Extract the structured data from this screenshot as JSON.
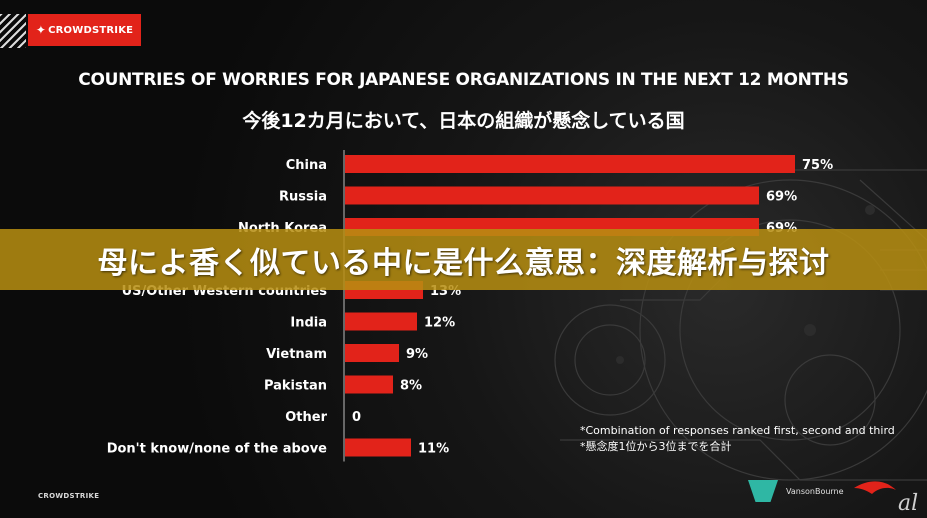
{
  "header": {
    "brand": "CROWDSTRIKE"
  },
  "banner": {
    "text": "母によ香く似ている中に是什么意思：深度解析与探讨"
  },
  "footnote": {
    "en": "*Combination of responses ranked first, second and third",
    "jp": "*懸念度1位から3位までを合計"
  },
  "footer": {
    "brand": "CROWDSTRIKE",
    "partner": "VansonBourne",
    "corner_mark": "al"
  },
  "colors": {
    "bar": "#e2231a",
    "text": "#ffffff",
    "banner": "#b78e12",
    "partner": "#2fb7a4"
  },
  "chart_data": {
    "type": "bar",
    "orientation": "horizontal",
    "title": "COUNTRIES OF WORRIES FOR JAPANESE ORGANIZATIONS IN THE NEXT 12 MONTHS",
    "subtitle": "今後12カ月において、日本の組織が懸念している国",
    "categories": [
      "China",
      "Russia",
      "North Korea",
      "",
      "US/Other Western countries",
      "India",
      "Vietnam",
      "Pakistan",
      "Other",
      "Don't know/none of the above"
    ],
    "values": [
      75,
      69,
      69,
      null,
      13,
      12,
      9,
      8,
      0,
      11
    ],
    "value_labels": [
      "75%",
      "69%",
      "69%",
      "",
      "13%",
      "12%",
      "9%",
      "8%",
      "0",
      "11%"
    ],
    "xlim": [
      0,
      100
    ],
    "grid": false,
    "legend": "none"
  }
}
